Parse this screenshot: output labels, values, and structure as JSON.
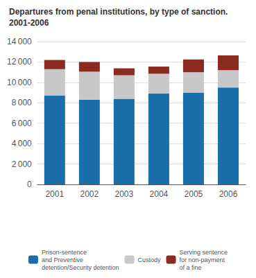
{
  "chart_data": {
    "type": "bar",
    "stacked": true,
    "title": "Departures from penal institutions, by type of sanction.",
    "subtitle": "2001-2006",
    "categories": [
      "2001",
      "2002",
      "2003",
      "2004",
      "2005",
      "2006"
    ],
    "series": [
      {
        "name": "Prison-sentence\nand Preventive\ndetention/Security detention",
        "color": "#1a6fab",
        "values": [
          8700,
          8300,
          8400,
          8900,
          9000,
          9500
        ]
      },
      {
        "name": "Custody",
        "color": "#c8c8c8",
        "values": [
          2600,
          2750,
          2300,
          1950,
          2000,
          1700
        ]
      },
      {
        "name": "Serving sentence\nfor non-payment\nof a fine",
        "color": "#8b2a1e",
        "values": [
          900,
          950,
          680,
          700,
          1250,
          1450
        ]
      }
    ],
    "ylim": [
      0,
      14000
    ],
    "yticks": [
      0,
      {
        "value": 2000,
        "label": "2 000"
      },
      {
        "value": 4000,
        "label": "4 000"
      },
      {
        "value": 6000,
        "label": "6 000"
      },
      {
        "value": 8000,
        "label": "8 000"
      },
      {
        "value": 10000,
        "label": "10 000"
      },
      {
        "value": 12000,
        "label": "12 000"
      },
      {
        "value": 14000,
        "label": "14 000"
      }
    ],
    "grid": true,
    "legend": "bottom"
  }
}
